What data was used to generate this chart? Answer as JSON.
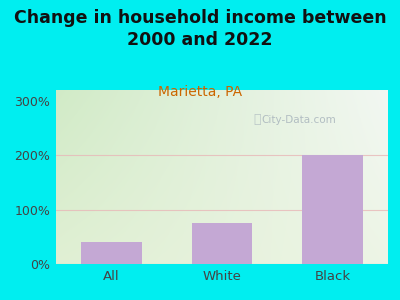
{
  "categories": [
    "All",
    "White",
    "Black"
  ],
  "values": [
    40,
    75,
    200
  ],
  "bar_color": "#c4a8d4",
  "background_color": "#00eef0",
  "title": "Change in household income between\n2000 and 2022",
  "subtitle": "Marietta, PA",
  "subtitle_color": "#cc6600",
  "title_fontsize": 12.5,
  "subtitle_fontsize": 10,
  "ylim": [
    0,
    320
  ],
  "yticks": [
    0,
    100,
    200,
    300
  ],
  "ytick_labels": [
    "0%",
    "100%",
    "200%",
    "300%"
  ],
  "grid_color": "#e8b8b8",
  "watermark": "City-Data.com",
  "watermark_color": "#a8b4bc",
  "tick_label_color": "#444444",
  "gradient_top_left": "#d4e8c8",
  "gradient_top_right": "#f0f0f0",
  "gradient_bottom": "#e8f0e0"
}
